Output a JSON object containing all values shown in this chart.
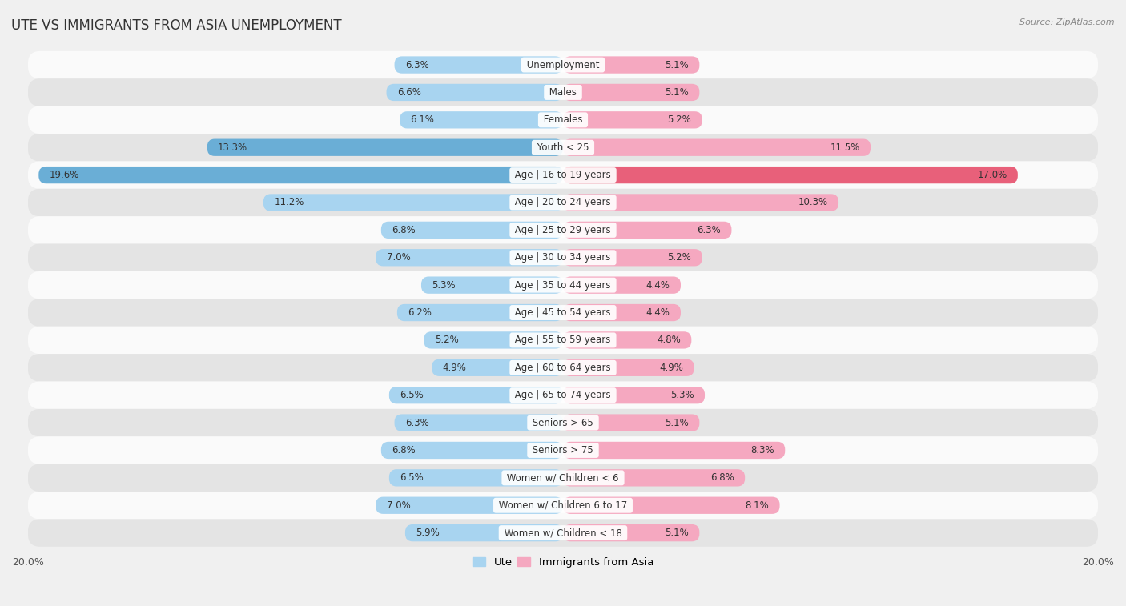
{
  "title": "UTE VS IMMIGRANTS FROM ASIA UNEMPLOYMENT",
  "source": "Source: ZipAtlas.com",
  "categories": [
    "Unemployment",
    "Males",
    "Females",
    "Youth < 25",
    "Age | 16 to 19 years",
    "Age | 20 to 24 years",
    "Age | 25 to 29 years",
    "Age | 30 to 34 years",
    "Age | 35 to 44 years",
    "Age | 45 to 54 years",
    "Age | 55 to 59 years",
    "Age | 60 to 64 years",
    "Age | 65 to 74 years",
    "Seniors > 65",
    "Seniors > 75",
    "Women w/ Children < 6",
    "Women w/ Children 6 to 17",
    "Women w/ Children < 18"
  ],
  "ute_values": [
    6.3,
    6.6,
    6.1,
    13.3,
    19.6,
    11.2,
    6.8,
    7.0,
    5.3,
    6.2,
    5.2,
    4.9,
    6.5,
    6.3,
    6.8,
    6.5,
    7.0,
    5.9
  ],
  "asia_values": [
    5.1,
    5.1,
    5.2,
    11.5,
    17.0,
    10.3,
    6.3,
    5.2,
    4.4,
    4.4,
    4.8,
    4.9,
    5.3,
    5.1,
    8.3,
    6.8,
    8.1,
    5.1
  ],
  "ute_color": "#a8d4f0",
  "asia_color": "#f5a8c0",
  "ute_color_highlight": "#6aaed6",
  "asia_color_highlight": "#e8607a",
  "max_val": 20.0,
  "bg_color": "#f0f0f0",
  "row_color_light": "#fafafa",
  "row_color_dark": "#e4e4e4",
  "title_fontsize": 12,
  "label_fontsize": 8.5,
  "value_fontsize": 8.5,
  "bar_height": 0.62
}
